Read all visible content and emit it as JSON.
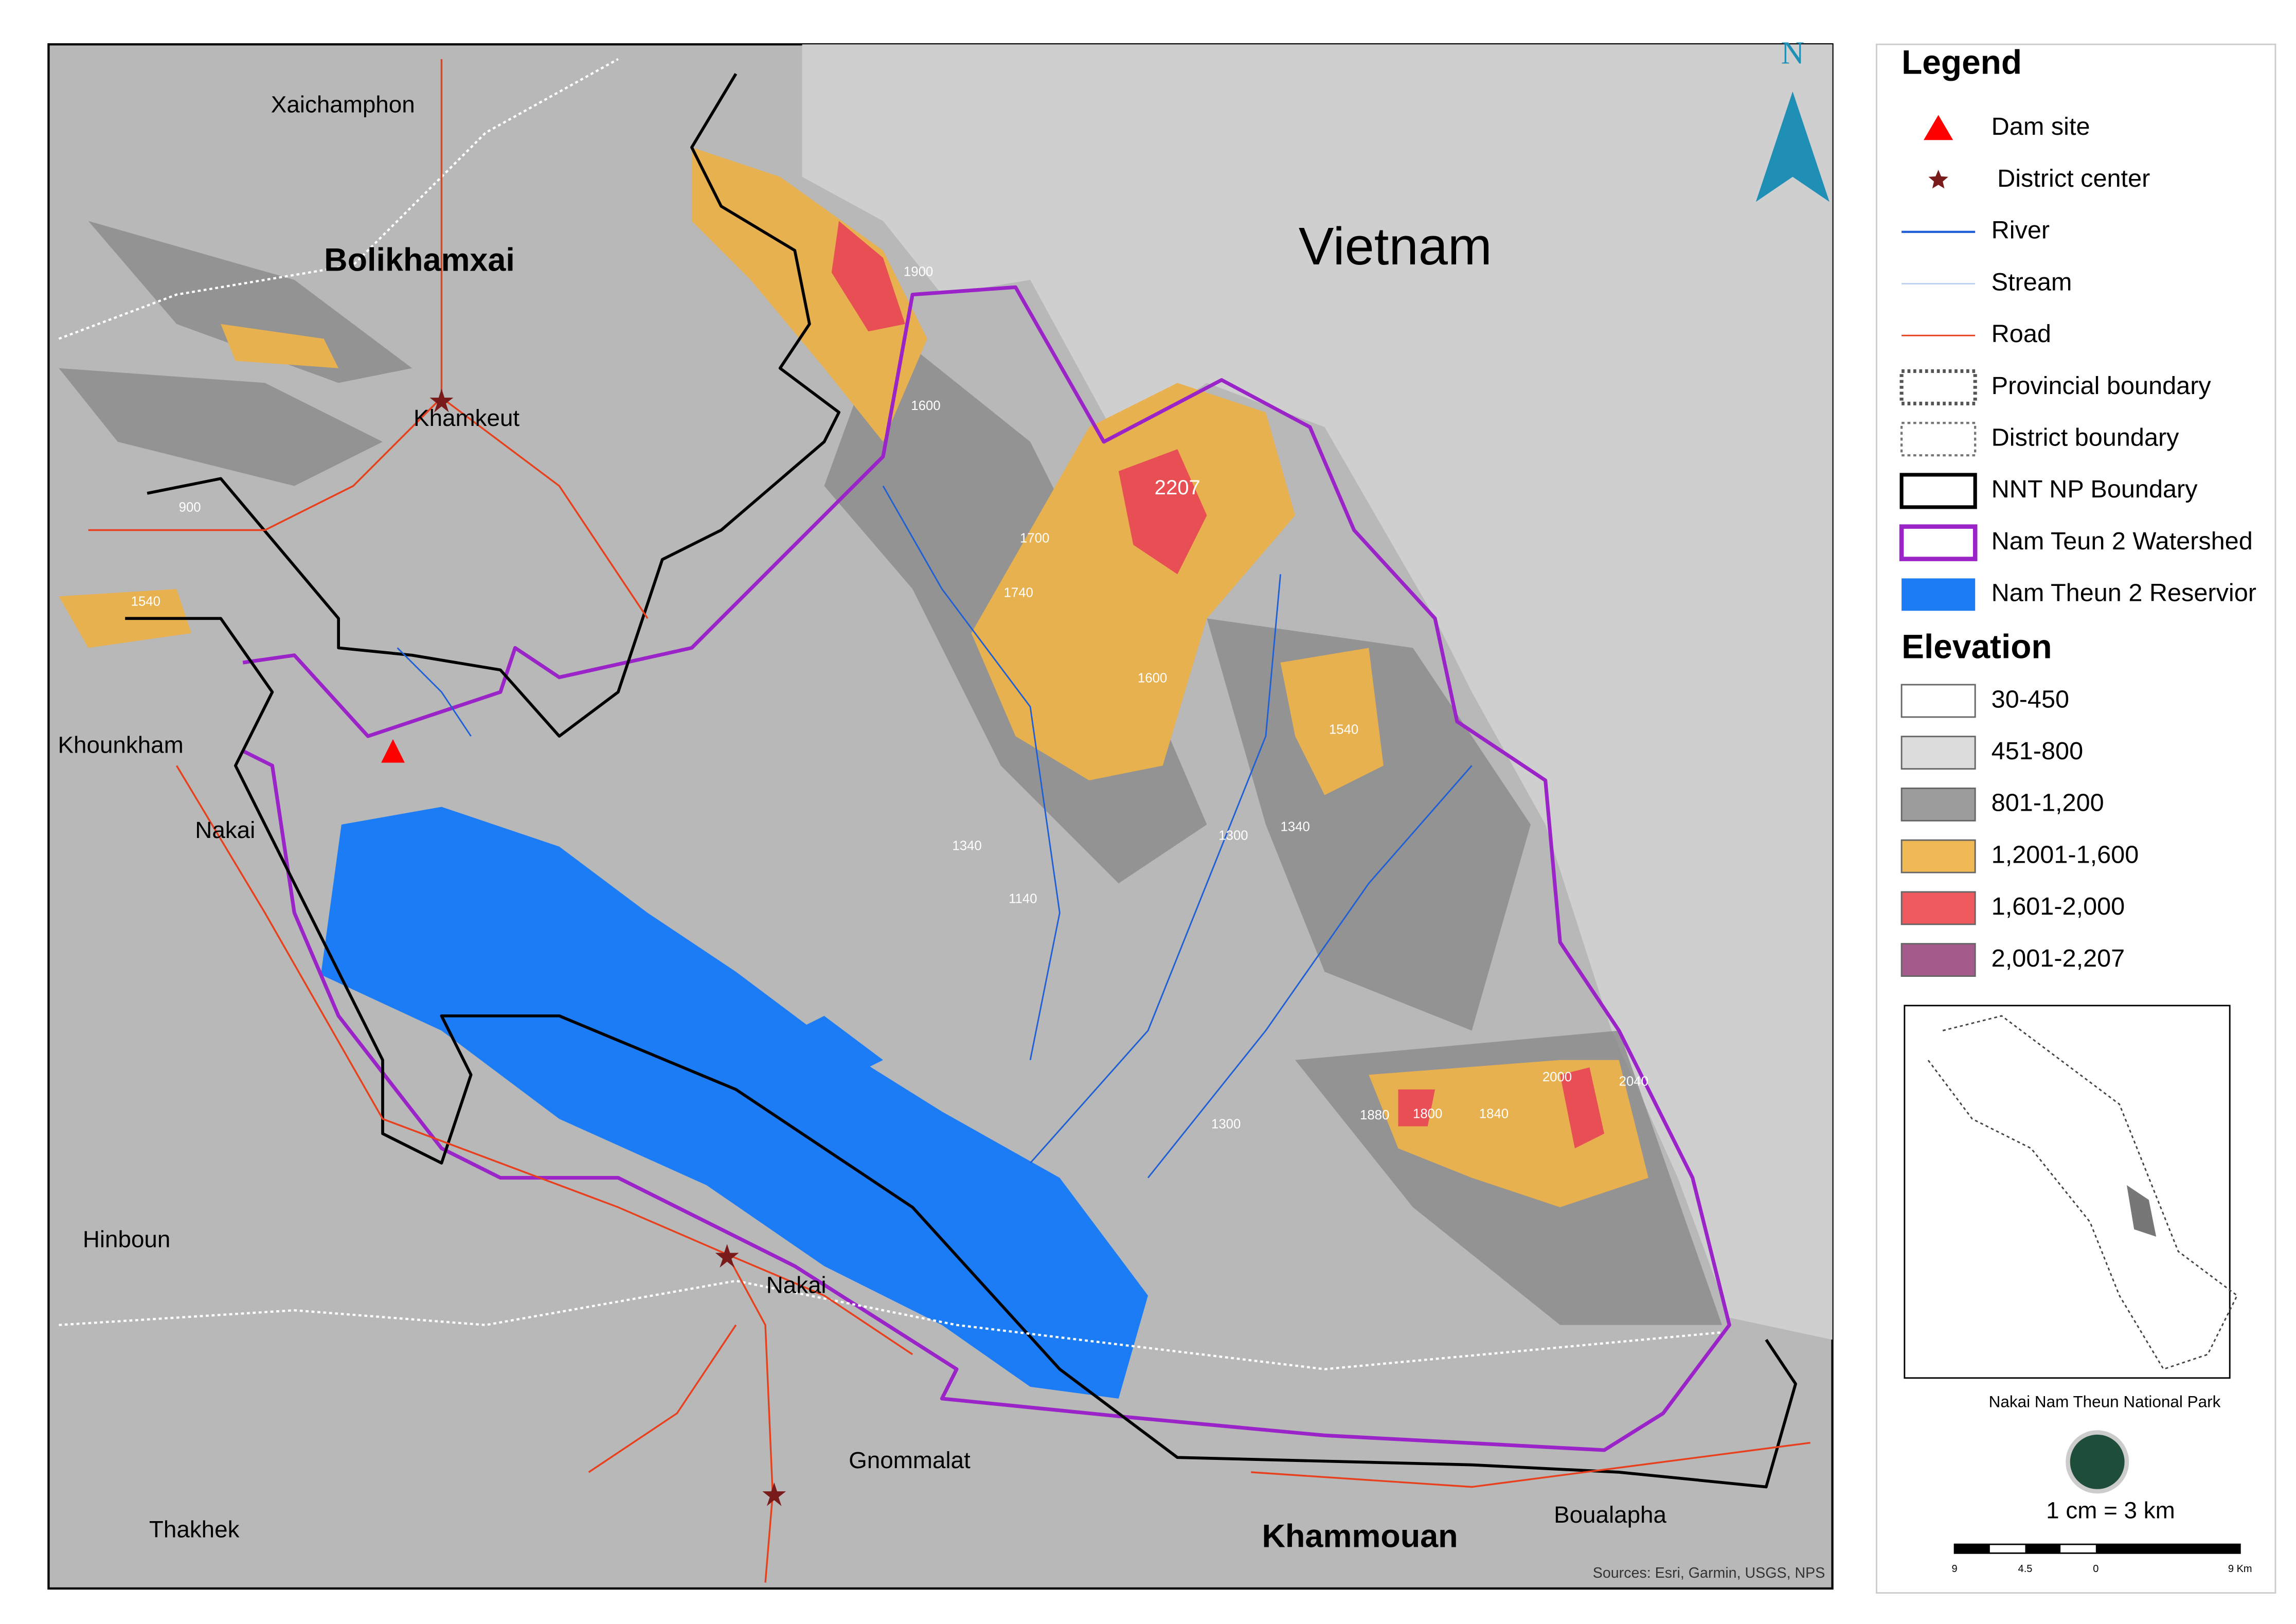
{
  "map": {
    "regions": [
      "Vietnam",
      "Bolikhamxai",
      "Khammouan"
    ],
    "places": [
      "Xaichamphon",
      "Khamkeut",
      "Khounkham",
      "Nakai",
      "Hinboun",
      "Nakai",
      "Gnommalat",
      "Thakhek",
      "Boualapha"
    ],
    "elevation_labels": [
      "1900",
      "1600",
      "2207",
      "1700",
      "1740",
      "1600",
      "1540",
      "1340",
      "1300",
      "1340",
      "1140",
      "1300",
      "1880",
      "1800",
      "1840",
      "2000",
      "2040",
      "900",
      "1540"
    ],
    "north": "N",
    "sources": "Sources: Esri, Garmin, USGS, NPS"
  },
  "legend": {
    "title": "Legend",
    "items": [
      "Dam site",
      "District center",
      "River",
      "Stream",
      "Road",
      "Provincial boundary",
      "District boundary",
      "NNT NP Boundary",
      "Nam Teun 2 Watershed",
      "Nam Theun 2 Reservior"
    ],
    "elevation_title": "Elevation",
    "elevation_classes": [
      {
        "label": "30-450",
        "color": "#ffffff"
      },
      {
        "label": "451-800",
        "color": "#dcdcdc"
      },
      {
        "label": "801-1,200",
        "color": "#9c9c9c"
      },
      {
        "label": "1,2001-1,600",
        "color": "#f0b955"
      },
      {
        "label": "1,601-2,000",
        "color": "#ef5a5f"
      },
      {
        "label": "2,001-2,207",
        "color": "#a55a8c"
      }
    ]
  },
  "inset": {
    "caption": "Nakai Nam Theun National Park"
  },
  "scale": {
    "text": "1 cm = 3 km",
    "ticks": [
      "9",
      "4.5",
      "0",
      "9 Km"
    ]
  }
}
